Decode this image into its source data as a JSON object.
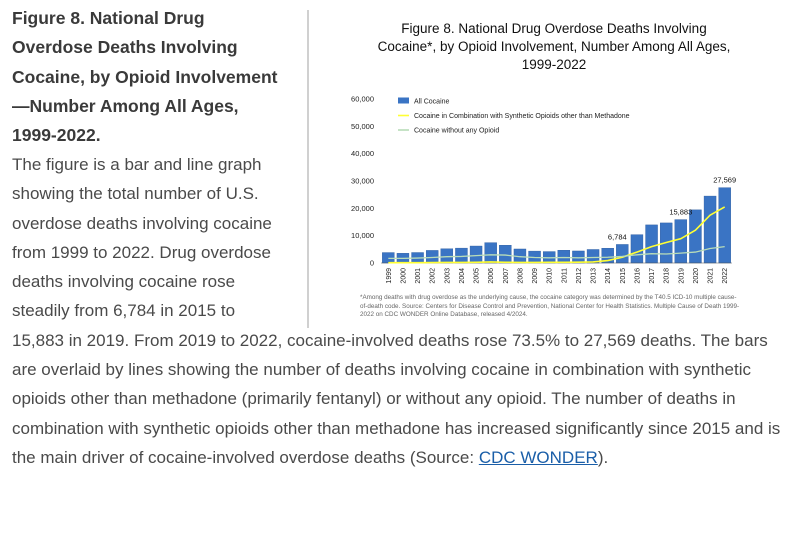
{
  "heading": "Figure 8. National Drug Overdose Deaths Involving Cocaine, by Opioid Involvement—Number Among All Ages, 1999-2022.",
  "description_part1": "The figure is a bar and line graph showing the total number of U.S. overdose deaths involving cocaine from 1999 to 2022. Drug overdose deaths involving cocaine rose steadily from 6,784 in 2015 to",
  "description_part2": "15,883 in 2019. From 2019 to 2022, cocaine-involved deaths rose 73.5% to 27,569 deaths. The bars are overlaid by lines showing the number of deaths involving cocaine in combination with synthetic opioids other than methadone (primarily fentanyl) or without any opioid. The number of deaths in combination with synthetic opioids other than methadone has increased significantly since 2015 and is the main driver of cocaine-involved overdose deaths (Source: ",
  "source_link": "CDC WONDER",
  "description_end": ").",
  "figure_footnote": "*Among deaths with drug overdose as the underlying cause, the cocaine category was determined by the T40.5 ICD-10 multiple cause-of-death code. Source: Centers for Disease Control and Prevention, National Center for Health Statistics. Multiple Cause of Death 1999-2022 on CDC WONDER Online Database, released 4/2024.",
  "colors": {
    "bar": "#3a74c4",
    "bar_edge": "#2a5a9e",
    "synthetic_line": "#ffff33",
    "no_opioid_line": "#b8dcb8"
  },
  "chart_data": {
    "type": "bar",
    "title_lines": [
      "Figure 8. National Drug Overdose Deaths Involving",
      "Cocaine*, by Opioid Involvement, Number Among All Ages,",
      "1999-2022"
    ],
    "categories": [
      "1999",
      "2000",
      "2001",
      "2002",
      "2003",
      "2004",
      "2005",
      "2006",
      "2007",
      "2008",
      "2009",
      "2010",
      "2011",
      "2012",
      "2013",
      "2014",
      "2015",
      "2016",
      "2017",
      "2018",
      "2019",
      "2020",
      "2021",
      "2022"
    ],
    "series": [
      {
        "name": "All Cocaine",
        "kind": "bar",
        "values": [
          3822,
          3544,
          3833,
          4599,
          5199,
          5443,
          6208,
          7448,
          6512,
          5129,
          4350,
          4183,
          4681,
          4404,
          4944,
          5415,
          6784,
          10375,
          13942,
          14666,
          15883,
          19447,
          24486,
          27569
        ]
      },
      {
        "name": "Cocaine in Combination with Synthetic Opioids other than Methadone",
        "kind": "line",
        "values": [
          100,
          100,
          100,
          150,
          200,
          200,
          250,
          400,
          250,
          200,
          200,
          250,
          250,
          300,
          400,
          900,
          2100,
          4000,
          6000,
          7500,
          8900,
          12000,
          17500,
          20500
        ]
      },
      {
        "name": "Cocaine without any Opioid",
        "kind": "line",
        "values": [
          1700,
          1700,
          1800,
          2000,
          2300,
          2400,
          2700,
          3000,
          2900,
          2300,
          2000,
          1900,
          2000,
          1900,
          2000,
          2100,
          2400,
          3000,
          3400,
          3300,
          3600,
          4000,
          5300,
          6000
        ]
      }
    ],
    "data_labels": [
      {
        "category": "2015",
        "text": "6,784"
      },
      {
        "category": "2019",
        "text": "15,883"
      },
      {
        "category": "2022",
        "text": "27,569"
      }
    ],
    "yticks": [
      0,
      10000,
      20000,
      30000,
      40000,
      50000,
      60000
    ],
    "ytick_labels": [
      "0",
      "10,000",
      "20,000",
      "30,000",
      "40,000",
      "50,000",
      "60,000"
    ],
    "ylim": [
      0,
      60000
    ],
    "xlabel": "",
    "ylabel": "",
    "legend_position": "top-left",
    "grid": false
  }
}
